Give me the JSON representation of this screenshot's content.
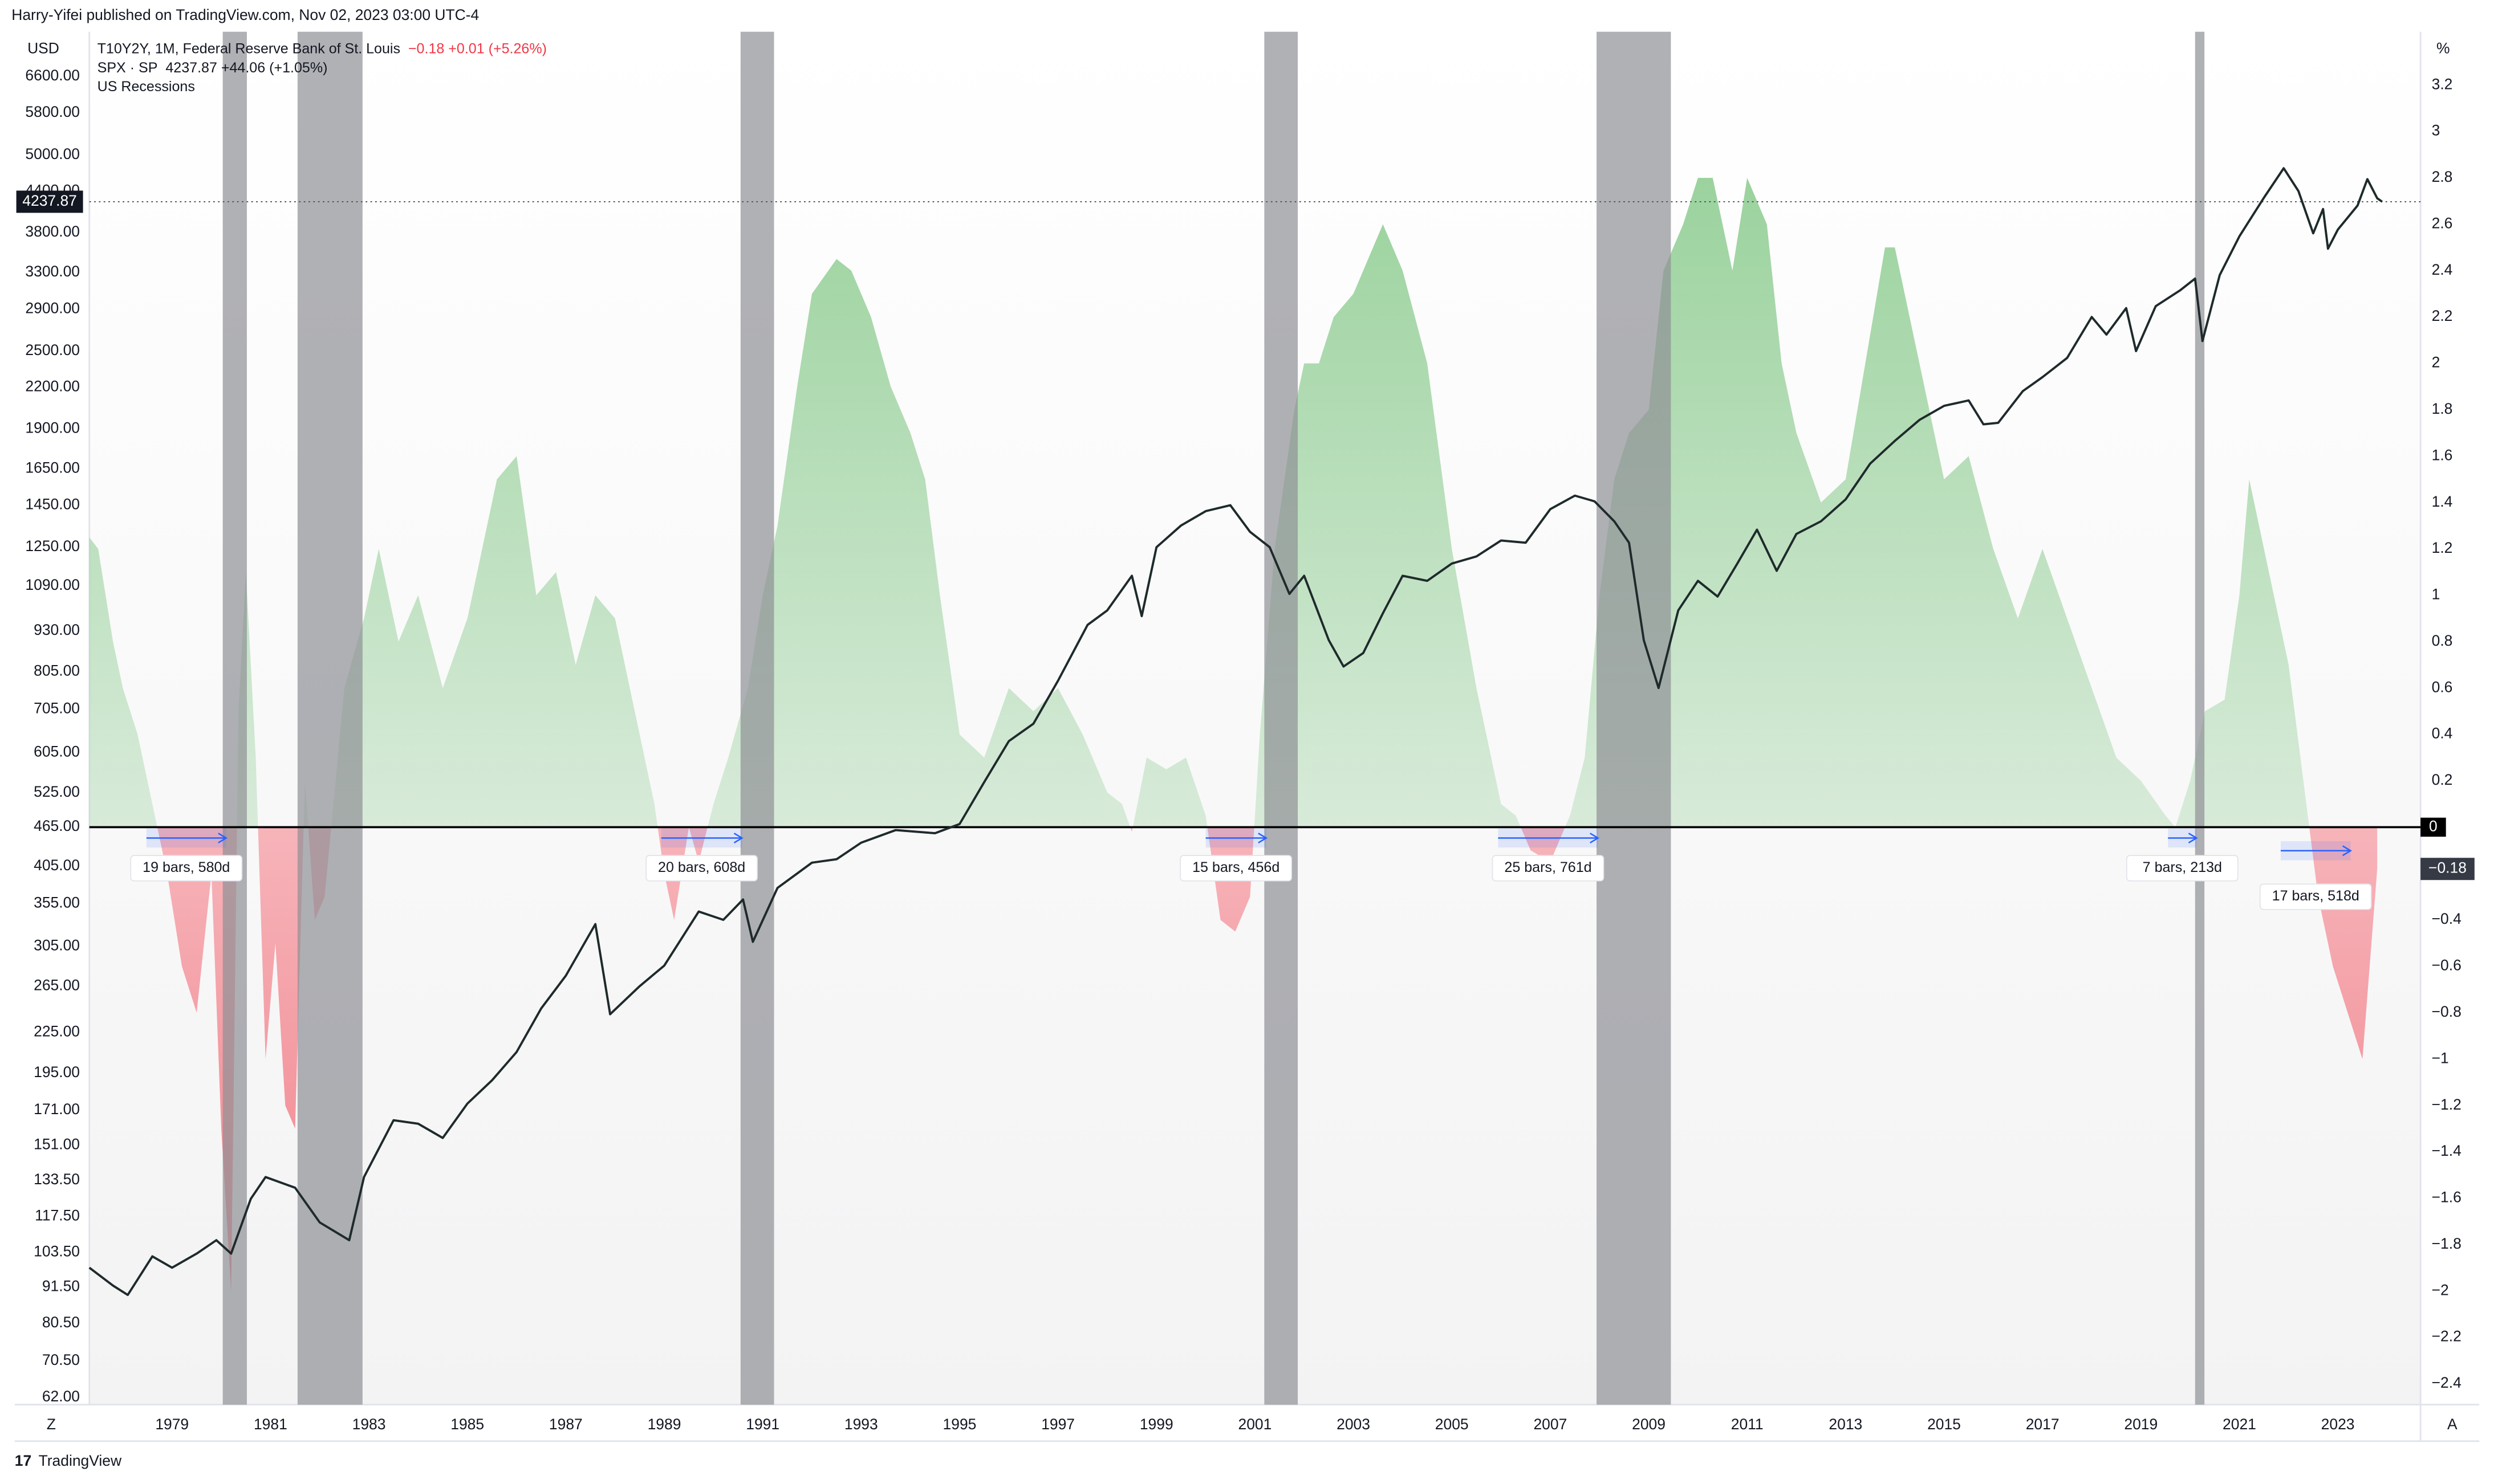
{
  "header": {
    "publisher": "Harry-Yifei published on TradingView.com, Nov 02, 2023 03:00 UTC-4",
    "footer": "TradingView"
  },
  "chart_data": {
    "type": "line",
    "left_unit": "USD",
    "right_unit": "%",
    "left_scale_button": "Z",
    "right_scale_button": "A",
    "xlim": [
      1977.32,
      2024.68
    ],
    "xticks": [
      1979,
      1981,
      1983,
      1985,
      1987,
      1989,
      1991,
      1993,
      1995,
      1997,
      1999,
      2001,
      2003,
      2005,
      2007,
      2009,
      2011,
      2013,
      2015,
      2017,
      2019,
      2021,
      2023
    ],
    "log_y": true,
    "ylim": [
      60.4,
      7727
    ],
    "yticks": [
      {
        "value": 6600,
        "label": "6600.00"
      },
      {
        "value": 5800,
        "label": "5800.00"
      },
      {
        "value": 5000,
        "label": "5000.00"
      },
      {
        "value": 4400,
        "label": "4400.00"
      },
      {
        "value": 3800,
        "label": "3800.00"
      },
      {
        "value": 3300,
        "label": "3300.00"
      },
      {
        "value": 2900,
        "label": "2900.00"
      },
      {
        "value": 2500,
        "label": "2500.00"
      },
      {
        "value": 2200,
        "label": "2200.00"
      },
      {
        "value": 1900,
        "label": "1900.00"
      },
      {
        "value": 1650,
        "label": "1650.00"
      },
      {
        "value": 1450,
        "label": "1450.00"
      },
      {
        "value": 1250,
        "label": "1250.00"
      },
      {
        "value": 1090,
        "label": "1090.00"
      },
      {
        "value": 930,
        "label": "930.00"
      },
      {
        "value": 805,
        "label": "805.00"
      },
      {
        "value": 705,
        "label": "705.00"
      },
      {
        "value": 605,
        "label": "605.00"
      },
      {
        "value": 525,
        "label": "525.00"
      },
      {
        "value": 465,
        "label": "465.00"
      },
      {
        "value": 405,
        "label": "405.00"
      },
      {
        "value": 355,
        "label": "355.00"
      },
      {
        "value": 305,
        "label": "305.00"
      },
      {
        "value": 265,
        "label": "265.00"
      },
      {
        "value": 225,
        "label": "225.00"
      },
      {
        "value": 195,
        "label": "195.00"
      },
      {
        "value": 171,
        "label": "171.00"
      },
      {
        "value": 151,
        "label": "151.00"
      },
      {
        "value": 133.5,
        "label": "133.50"
      },
      {
        "value": 117.5,
        "label": "117.50"
      },
      {
        "value": 103.5,
        "label": "103.50"
      },
      {
        "value": 91.5,
        "label": "91.50"
      },
      {
        "value": 80.5,
        "label": "80.50"
      },
      {
        "value": 70.5,
        "label": "70.50"
      },
      {
        "value": 62,
        "label": "62.00"
      }
    ],
    "y2lim": [
      -2.49,
      3.43
    ],
    "y2ticks": [
      3.2,
      3,
      2.8,
      2.6,
      2.4,
      2.2,
      2,
      1.8,
      1.6,
      1.4,
      1.2,
      1,
      0.8,
      0.6,
      0.4,
      0.2,
      {
        "value": -0.4,
        "label": "−0.4"
      },
      {
        "value": -0.6,
        "label": "−0.6"
      },
      {
        "value": -0.8,
        "label": "−0.8"
      },
      {
        "value": -1,
        "label": "−1"
      },
      {
        "value": -1.2,
        "label": "−1.2"
      },
      {
        "value": -1.4,
        "label": "−1.4"
      },
      {
        "value": -1.6,
        "label": "−1.6"
      },
      {
        "value": -1.8,
        "label": "−1.8"
      },
      {
        "value": -2,
        "label": "−2"
      },
      {
        "value": -2.2,
        "label": "−2.2"
      },
      {
        "value": -2.4,
        "label": "−2.4"
      }
    ],
    "zero_line": 0,
    "series": [
      {
        "name": "T10Y2Y, 1M, Federal Reserve Bank of St. Louis",
        "type": "area",
        "axis": "y2",
        "color_up": "#66bb6a",
        "color_down": "#f23645",
        "status": "−0.18  +0.01 (+5.26%)",
        "last_label": "−0.18",
        "x": [
          1977.32,
          1977.5,
          1977.8,
          1978.0,
          1978.3,
          1978.6,
          1978.9,
          1979.2,
          1979.5,
          1979.8,
          1980.0,
          1980.2,
          1980.35,
          1980.5,
          1980.7,
          1980.9,
          1981.1,
          1981.3,
          1981.5,
          1981.7,
          1981.9,
          1982.1,
          1982.5,
          1982.9,
          1983.2,
          1983.6,
          1984.0,
          1984.5,
          1985.0,
          1985.3,
          1985.6,
          1986.0,
          1986.4,
          1986.8,
          1987.2,
          1987.6,
          1988.0,
          1988.5,
          1988.8,
          1989.0,
          1989.2,
          1989.5,
          1989.7,
          1990.0,
          1990.3,
          1990.7,
          1991.0,
          1991.3,
          1991.7,
          1992.0,
          1992.5,
          1992.8,
          1993.2,
          1993.6,
          1994.0,
          1994.3,
          1994.6,
          1995.0,
          1995.5,
          1996.0,
          1996.5,
          1997.0,
          1997.5,
          1998.0,
          1998.3,
          1998.5,
          1998.8,
          1999.2,
          1999.6,
          2000.0,
          2000.3,
          2000.6,
          2000.9,
          2001.1,
          2001.4,
          2001.8,
          2002.0,
          2002.3,
          2002.6,
          2003.0,
          2003.4,
          2003.6,
          2004.0,
          2004.5,
          2005.0,
          2005.5,
          2006.0,
          2006.3,
          2006.6,
          2007.0,
          2007.4,
          2007.7,
          2008.0,
          2008.3,
          2008.6,
          2009.0,
          2009.3,
          2009.7,
          2010.0,
          2010.3,
          2010.7,
          2011.0,
          2011.4,
          2011.7,
          2012.0,
          2012.5,
          2013.0,
          2013.4,
          2013.8,
          2014.0,
          2014.5,
          2015.0,
          2015.5,
          2016.0,
          2016.5,
          2017.0,
          2017.5,
          2018.0,
          2018.5,
          2019.0,
          2019.5,
          2019.7,
          2020.0,
          2020.3,
          2020.7,
          2021.0,
          2021.2,
          2021.6,
          2022.0,
          2022.3,
          2022.6,
          2022.9,
          2023.2,
          2023.5,
          2023.8
        ],
        "values": [
          1.25,
          1.2,
          0.8,
          0.6,
          0.4,
          0.1,
          -0.2,
          -0.6,
          -0.8,
          -0.2,
          -1.3,
          -2.0,
          0.5,
          1.1,
          0.3,
          -1.0,
          -0.5,
          -1.2,
          -1.3,
          0.2,
          -0.4,
          -0.3,
          0.6,
          0.9,
          1.2,
          0.8,
          1.0,
          0.6,
          0.9,
          1.2,
          1.5,
          1.6,
          1.0,
          1.1,
          0.7,
          1.0,
          0.9,
          0.4,
          0.1,
          -0.2,
          -0.4,
          0.0,
          -0.15,
          0.1,
          0.3,
          0.6,
          1.0,
          1.3,
          1.9,
          2.3,
          2.45,
          2.4,
          2.2,
          1.9,
          1.7,
          1.5,
          1.0,
          0.4,
          0.3,
          0.6,
          0.5,
          0.6,
          0.4,
          0.15,
          0.1,
          -0.02,
          0.3,
          0.25,
          0.3,
          0.05,
          -0.4,
          -0.45,
          -0.3,
          0.4,
          1.2,
          1.8,
          2.0,
          2.0,
          2.2,
          2.3,
          2.5,
          2.6,
          2.4,
          2.0,
          1.2,
          0.6,
          0.1,
          0.05,
          -0.1,
          -0.15,
          0.05,
          0.3,
          1.0,
          1.5,
          1.7,
          1.8,
          2.4,
          2.6,
          2.8,
          2.8,
          2.4,
          2.8,
          2.6,
          2.0,
          1.7,
          1.4,
          1.5,
          2.0,
          2.5,
          2.5,
          2.0,
          1.5,
          1.6,
          1.2,
          0.9,
          1.2,
          0.9,
          0.6,
          0.3,
          0.2,
          0.05,
          0.0,
          0.2,
          0.5,
          0.55,
          1.0,
          1.5,
          1.1,
          0.7,
          0.2,
          -0.3,
          -0.6,
          -0.8,
          -1.0,
          -0.18
        ]
      },
      {
        "name": "SPX · SP",
        "type": "line",
        "axis": "y",
        "color": "#1e2a2b",
        "status": "4237.87  +44.06 (+1.05%)",
        "last_label": "4237.87",
        "x": [
          1977.32,
          1977.8,
          1978.1,
          1978.6,
          1979.0,
          1979.5,
          1979.9,
          1980.2,
          1980.6,
          1980.9,
          1981.5,
          1982.0,
          1982.6,
          1982.9,
          1983.5,
          1984.0,
          1984.5,
          1985.0,
          1985.5,
          1986.0,
          1986.5,
          1987.0,
          1987.6,
          1987.9,
          1988.5,
          1989.0,
          1989.7,
          1990.2,
          1990.6,
          1990.8,
          1991.3,
          1992.0,
          1992.5,
          1993.0,
          1993.7,
          1994.5,
          1995.0,
          1995.5,
          1996.0,
          1996.5,
          1997.0,
          1997.6,
          1998.0,
          1998.5,
          1998.7,
          1999.0,
          1999.5,
          2000.0,
          2000.5,
          2000.9,
          2001.3,
          2001.7,
          2002.0,
          2002.5,
          2002.8,
          2003.2,
          2003.6,
          2004.0,
          2004.5,
          2005.0,
          2005.5,
          2006.0,
          2006.5,
          2007.0,
          2007.5,
          2007.9,
          2008.3,
          2008.6,
          2008.9,
          2009.2,
          2009.6,
          2010.0,
          2010.4,
          2010.8,
          2011.2,
          2011.6,
          2012.0,
          2012.5,
          2013.0,
          2013.5,
          2014.0,
          2014.5,
          2015.0,
          2015.5,
          2015.8,
          2016.1,
          2016.6,
          2017.0,
          2017.5,
          2018.0,
          2018.3,
          2018.7,
          2018.9,
          2019.3,
          2019.8,
          2020.1,
          2020.25,
          2020.6,
          2021.0,
          2021.5,
          2021.9,
          2022.2,
          2022.5,
          2022.7,
          2022.8,
          2023.0,
          2023.4,
          2023.6,
          2023.8,
          2023.9
        ],
        "values": [
          98,
          92,
          89,
          102,
          98,
          103,
          108,
          103,
          125,
          135,
          130,
          115,
          108,
          135,
          165,
          163,
          155,
          175,
          190,
          210,
          245,
          275,
          330,
          240,
          265,
          285,
          345,
          335,
          360,
          310,
          375,
          410,
          415,
          440,
          460,
          455,
          470,
          545,
          630,
          670,
          780,
          950,
          1000,
          1130,
          980,
          1250,
          1350,
          1420,
          1450,
          1320,
          1250,
          1060,
          1130,
          900,
          820,
          860,
          990,
          1130,
          1110,
          1180,
          1210,
          1280,
          1270,
          1430,
          1500,
          1470,
          1370,
          1270,
          900,
          760,
          1000,
          1110,
          1050,
          1180,
          1330,
          1150,
          1310,
          1370,
          1480,
          1680,
          1820,
          1960,
          2060,
          2100,
          1930,
          1940,
          2170,
          2280,
          2440,
          2820,
          2650,
          2910,
          2500,
          2930,
          3100,
          3230,
          2590,
          3270,
          3750,
          4300,
          4770,
          4400,
          3790,
          4130,
          3590,
          3840,
          4180,
          4590,
          4290,
          4237.87
        ]
      }
    ],
    "recessions": {
      "name": "US Recessions",
      "color": "#8f9096",
      "ranges": [
        [
          1980.03,
          1980.52
        ],
        [
          1981.55,
          1982.87
        ],
        [
          1990.55,
          1991.23
        ],
        [
          2001.19,
          2001.87
        ],
        [
          2007.94,
          2009.45
        ],
        [
          2020.1,
          2020.29
        ]
      ]
    },
    "annotations": [
      {
        "text": "19 bars, 580d",
        "x": [
          1978.48,
          1980.1
        ]
      },
      {
        "text": "20 bars, 608d",
        "x": [
          1988.94,
          1990.58
        ]
      },
      {
        "text": "15 bars, 456d",
        "x": [
          2000.0,
          2001.23
        ]
      },
      {
        "text": "25 bars, 761d",
        "x": [
          2005.94,
          2007.97
        ]
      },
      {
        "text": "7 bars, 213d",
        "x": [
          2019.55,
          2020.13
        ]
      },
      {
        "text": "17 bars, 518d",
        "x": [
          2021.84,
          2023.26
        ]
      }
    ]
  }
}
